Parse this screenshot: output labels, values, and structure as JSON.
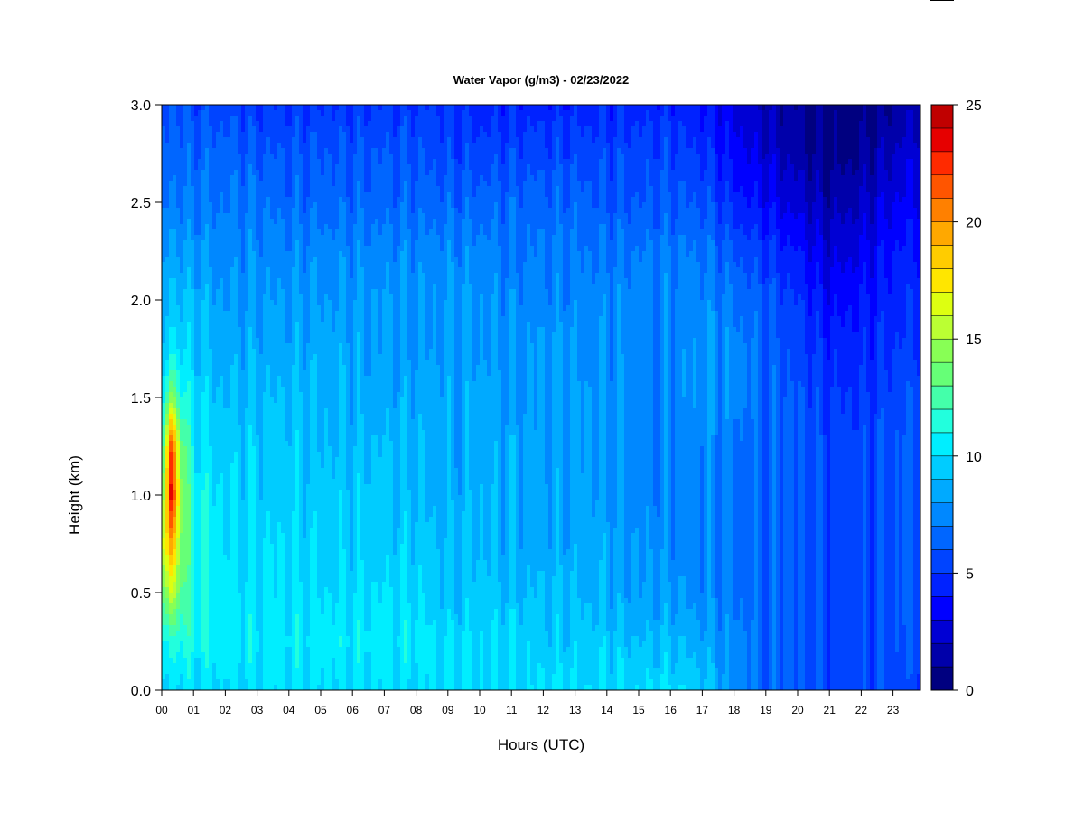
{
  "chart_data": {
    "type": "heatmap",
    "title": "Water Vapor (g/m3) - 02/23/2022",
    "xlabel": "Hours (UTC)",
    "ylabel": "Height (km)",
    "x_ticks": [
      "00",
      "01",
      "02",
      "03",
      "04",
      "05",
      "06",
      "07",
      "08",
      "09",
      "10",
      "11",
      "12",
      "13",
      "14",
      "15",
      "16",
      "17",
      "18",
      "19",
      "20",
      "21",
      "22",
      "23"
    ],
    "y_ticks": [
      "0.0",
      "0.5",
      "1.0",
      "1.5",
      "2.0",
      "2.5",
      "3.0"
    ],
    "xlim": [
      0,
      24
    ],
    "ylim": [
      0,
      3
    ],
    "colorbar": {
      "min": 0,
      "max": 25,
      "step": 1,
      "ticks": [
        "0",
        "5",
        "10",
        "15",
        "20",
        "25"
      ],
      "colors": [
        "#000080",
        "#0000AA",
        "#0000D4",
        "#0000FF",
        "#0022FF",
        "#0044FF",
        "#0066FF",
        "#0088FF",
        "#00AAFF",
        "#00CCFF",
        "#00EEFF",
        "#22FFDD",
        "#44FFAA",
        "#66FF77",
        "#88FF55",
        "#BBFF33",
        "#DDFF11",
        "#FFE600",
        "#FFCC00",
        "#FFA800",
        "#FF8000",
        "#FF5500",
        "#FF2A00",
        "#E60000",
        "#C00000",
        "#800000"
      ]
    },
    "profiles": [
      {
        "hour": 0.0,
        "z": [
          9.5,
          10.5,
          13.0,
          15.0,
          12.5,
          10.5,
          9.5,
          8.5,
          8.0,
          7.5,
          6.5,
          6.0,
          5.5
        ]
      },
      {
        "hour": 0.3,
        "z": [
          10.0,
          11.5,
          16.0,
          20.0,
          24.0,
          22.5,
          14.5,
          10.5,
          9.5,
          8.5,
          7.5,
          6.5,
          6.0
        ]
      },
      {
        "hour": 0.6,
        "z": [
          10.0,
          11.5,
          13.5,
          14.5,
          15.0,
          14.0,
          11.5,
          10.0,
          9.0,
          8.0,
          7.0,
          6.5,
          6.0
        ]
      },
      {
        "hour": 1.0,
        "z": [
          10.0,
          11.0,
          11.0,
          11.5,
          11.0,
          10.5,
          10.0,
          9.5,
          9.0,
          8.0,
          7.0,
          6.5,
          5.5
        ]
      },
      {
        "hour": 2.0,
        "z": [
          10.0,
          10.5,
          10.5,
          10.0,
          10.0,
          9.5,
          9.0,
          8.5,
          8.0,
          7.5,
          7.0,
          6.5,
          5.5
        ]
      },
      {
        "hour": 3.0,
        "z": [
          10.0,
          10.5,
          10.0,
          10.0,
          9.5,
          9.5,
          9.0,
          8.5,
          8.0,
          7.5,
          7.0,
          6.0,
          5.0
        ]
      },
      {
        "hour": 4.0,
        "z": [
          10.0,
          10.5,
          10.0,
          10.0,
          9.5,
          9.5,
          9.0,
          8.5,
          8.0,
          7.5,
          6.5,
          6.0,
          5.0
        ]
      },
      {
        "hour": 5.0,
        "z": [
          10.0,
          10.5,
          10.0,
          9.5,
          9.5,
          9.0,
          9.0,
          8.5,
          8.0,
          7.5,
          6.5,
          6.0,
          5.0
        ]
      },
      {
        "hour": 6.0,
        "z": [
          10.0,
          10.5,
          10.0,
          9.5,
          9.5,
          9.0,
          8.5,
          8.5,
          8.0,
          7.5,
          6.5,
          6.0,
          5.0
        ]
      },
      {
        "hour": 7.0,
        "z": [
          10.0,
          10.5,
          10.0,
          9.5,
          9.5,
          9.0,
          8.5,
          8.0,
          8.0,
          7.5,
          6.5,
          6.0,
          5.0
        ]
      },
      {
        "hour": 8.0,
        "z": [
          10.0,
          10.5,
          10.0,
          9.5,
          9.0,
          9.0,
          8.5,
          8.0,
          8.0,
          7.5,
          6.5,
          6.0,
          5.0
        ]
      },
      {
        "hour": 9.0,
        "z": [
          10.0,
          10.0,
          9.0,
          9.0,
          8.5,
          8.5,
          8.5,
          8.0,
          8.0,
          7.5,
          6.5,
          5.5,
          5.0
        ]
      },
      {
        "hour": 10.0,
        "z": [
          10.0,
          10.0,
          9.5,
          9.0,
          9.0,
          8.5,
          8.5,
          8.0,
          8.0,
          7.5,
          6.5,
          5.5,
          4.5
        ]
      },
      {
        "hour": 11.0,
        "z": [
          10.0,
          10.0,
          9.0,
          8.5,
          8.5,
          8.5,
          8.0,
          8.0,
          7.5,
          7.0,
          6.5,
          5.5,
          4.5
        ]
      },
      {
        "hour": 12.0,
        "z": [
          10.0,
          9.5,
          9.0,
          8.5,
          8.5,
          8.0,
          8.0,
          8.0,
          7.5,
          7.0,
          6.5,
          5.5,
          4.5
        ]
      },
      {
        "hour": 13.0,
        "z": [
          10.0,
          9.5,
          9.0,
          8.5,
          8.5,
          8.0,
          8.0,
          8.0,
          7.5,
          7.0,
          6.5,
          5.5,
          4.5
        ]
      },
      {
        "hour": 14.0,
        "z": [
          10.0,
          9.5,
          8.5,
          8.5,
          8.0,
          8.0,
          8.0,
          7.5,
          7.5,
          7.0,
          6.0,
          5.5,
          4.5
        ]
      },
      {
        "hour": 15.0,
        "z": [
          10.0,
          9.0,
          8.0,
          8.0,
          7.5,
          7.5,
          7.5,
          7.5,
          7.5,
          7.0,
          6.0,
          5.5,
          4.5
        ]
      },
      {
        "hour": 16.0,
        "z": [
          10.0,
          9.0,
          8.0,
          7.5,
          7.5,
          7.5,
          7.5,
          7.5,
          7.5,
          7.0,
          6.0,
          5.5,
          4.5
        ]
      },
      {
        "hour": 17.0,
        "z": [
          9.5,
          8.5,
          7.5,
          7.5,
          7.5,
          7.5,
          8.0,
          8.0,
          7.5,
          7.0,
          6.0,
          5.0,
          4.0
        ]
      },
      {
        "hour": 18.0,
        "z": [
          7.5,
          7.5,
          7.0,
          7.0,
          7.0,
          7.0,
          7.5,
          7.5,
          7.0,
          6.0,
          4.5,
          3.5,
          3.0
        ]
      },
      {
        "hour": 19.0,
        "z": [
          6.5,
          6.5,
          6.5,
          6.5,
          6.5,
          6.5,
          6.5,
          6.5,
          6.0,
          5.0,
          3.5,
          2.5,
          1.5
        ]
      },
      {
        "hour": 20.0,
        "z": [
          6.0,
          6.0,
          6.0,
          6.0,
          6.0,
          6.0,
          6.0,
          5.5,
          5.0,
          4.0,
          2.5,
          1.5,
          1.0
        ]
      },
      {
        "hour": 21.0,
        "z": [
          5.5,
          5.5,
          5.5,
          5.5,
          5.5,
          5.5,
          5.0,
          4.5,
          3.5,
          2.5,
          1.5,
          0.5,
          0.5
        ]
      },
      {
        "hour": 22.0,
        "z": [
          5.5,
          5.5,
          5.5,
          5.5,
          5.5,
          5.5,
          5.0,
          4.5,
          4.0,
          3.0,
          2.0,
          1.0,
          0.5
        ]
      },
      {
        "hour": 23.0,
        "z": [
          5.5,
          6.0,
          6.0,
          6.0,
          6.0,
          6.0,
          5.5,
          5.0,
          4.5,
          4.0,
          3.0,
          2.0,
          1.0
        ]
      },
      {
        "hour": 24.0,
        "z": [
          5.5,
          6.0,
          6.5,
          6.5,
          6.5,
          6.5,
          6.0,
          5.5,
          5.0,
          4.5,
          3.5,
          3.0,
          2.0
        ]
      }
    ],
    "profile_heights": [
      0.0,
      0.25,
      0.5,
      0.75,
      1.0,
      1.25,
      1.5,
      1.75,
      2.0,
      2.25,
      2.5,
      2.75,
      3.0
    ]
  }
}
